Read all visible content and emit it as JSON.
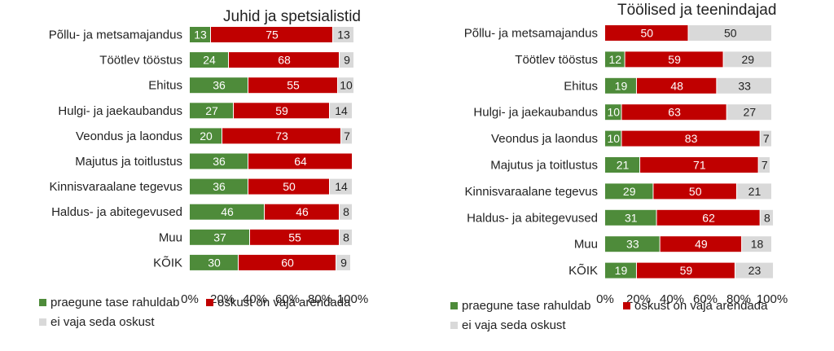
{
  "chart_data": [
    {
      "type": "bar",
      "orientation": "horizontal",
      "stacked": "percent",
      "title": "Juhid ja spetsialistid",
      "categories": [
        "Põllu- ja metsamajandus",
        "Töötlev tööstus",
        "Ehitus",
        "Hulgi- ja jaekaubandus",
        "Veondus ja laondus",
        "Majutus ja toitlustus",
        "Kinnisvaraalane tegevus",
        "Haldus- ja abitegevused",
        "Muu",
        "KÕIK"
      ],
      "series": [
        {
          "name": "praegune tase rahuldab",
          "color": "#4e8b3a",
          "values": [
            13,
            24,
            36,
            27,
            20,
            36,
            36,
            46,
            37,
            30
          ]
        },
        {
          "name": "oskust on vaja arendada",
          "color": "#c00000",
          "values": [
            75,
            68,
            55,
            59,
            73,
            64,
            50,
            46,
            55,
            60
          ]
        },
        {
          "name": "ei vaja seda oskust",
          "color": "#d9d9d9",
          "values": [
            13,
            9,
            10,
            14,
            7,
            0,
            14,
            8,
            8,
            9
          ]
        }
      ],
      "xlim": [
        0,
        100
      ],
      "tick_labels": [
        "0%",
        "20%",
        "40%",
        "60%",
        "80%",
        "100%"
      ],
      "grid": false,
      "legend_position": "bottom"
    },
    {
      "type": "bar",
      "orientation": "horizontal",
      "stacked": "percent",
      "title": "Töölised ja teenindajad",
      "categories": [
        "Põllu- ja metsamajandus",
        "Töötlev tööstus",
        "Ehitus",
        "Hulgi- ja jaekaubandus",
        "Veondus ja laondus",
        "Majutus ja toitlustus",
        "Kinnisvaraalane tegevus",
        "Haldus- ja abitegevused",
        "Muu",
        "KÕIK"
      ],
      "series": [
        {
          "name": "praegune tase rahuldab",
          "color": "#4e8b3a",
          "values": [
            0,
            12,
            19,
            10,
            10,
            21,
            29,
            31,
            33,
            19
          ]
        },
        {
          "name": "oskust on vaja arendada",
          "color": "#c00000",
          "values": [
            50,
            59,
            48,
            63,
            83,
            71,
            50,
            62,
            49,
            59
          ]
        },
        {
          "name": "ei vaja seda oskust",
          "color": "#d9d9d9",
          "values": [
            50,
            29,
            33,
            27,
            7,
            7,
            21,
            8,
            18,
            23
          ]
        }
      ],
      "xlim": [
        0,
        100
      ],
      "tick_labels": [
        "0%",
        "20%",
        "40%",
        "60%",
        "80%",
        "100%"
      ],
      "grid": false,
      "legend_position": "bottom"
    }
  ]
}
